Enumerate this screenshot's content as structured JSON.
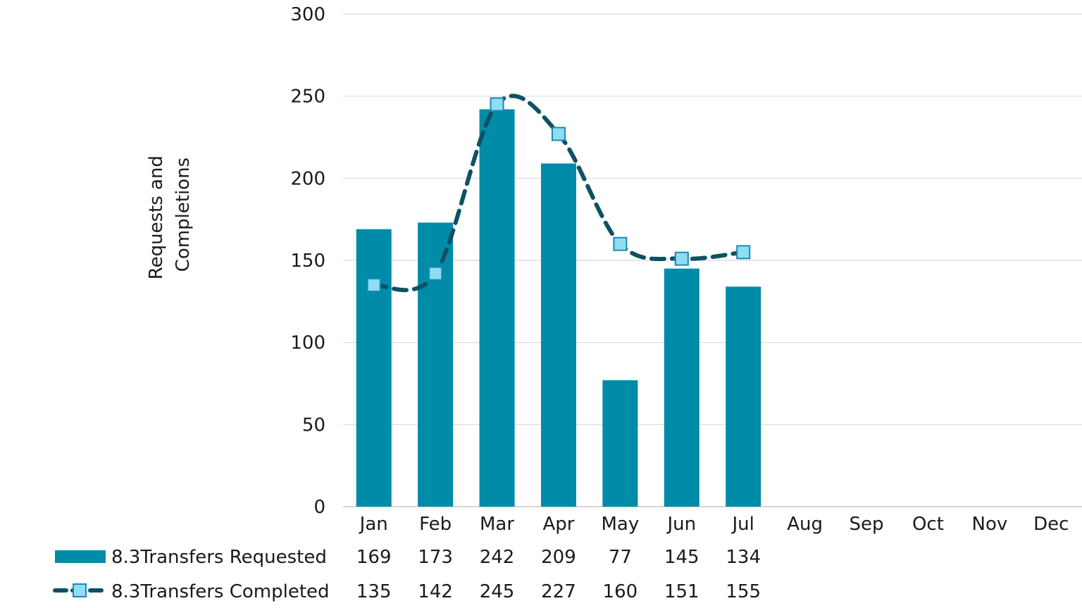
{
  "chart_data": {
    "type": "bar",
    "categories": [
      "Jan",
      "Feb",
      "Mar",
      "Apr",
      "May",
      "Jun",
      "Jul",
      "Aug",
      "Sep",
      "Oct",
      "Nov",
      "Dec"
    ],
    "series": [
      {
        "name": "8.3Transfers Requested",
        "type": "bar",
        "color": "#008ba8",
        "values": [
          169,
          173,
          242,
          209,
          77,
          145,
          134,
          null,
          null,
          null,
          null,
          null
        ]
      },
      {
        "name": "8.3Transfers Completed",
        "type": "line",
        "style": "dashed-smoothed",
        "marker": "square",
        "color": "#0d5165",
        "marker_color": "#8fdcf5",
        "values": [
          135,
          142,
          245,
          227,
          160,
          151,
          155,
          null,
          null,
          null,
          null,
          null
        ]
      }
    ],
    "ylabel_lines": [
      "Requests and",
      "Completions"
    ],
    "xlabel": "",
    "ylim": [
      0,
      300
    ],
    "yticks": [
      0,
      50,
      100,
      150,
      200,
      250,
      300
    ],
    "grid": true,
    "legend": "data-table-bottom"
  }
}
